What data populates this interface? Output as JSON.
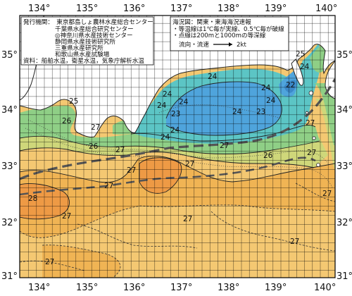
{
  "map": {
    "lon_ticks": [
      "134°",
      "135°",
      "136°",
      "137°",
      "138°",
      "139°",
      "140°"
    ],
    "lat_ticks": [
      "35°",
      "34°",
      "33°",
      "32°",
      "31°"
    ]
  },
  "info_left": {
    "lines": [
      "発行機関：　東京都島しょ農林水産総合センター",
      "千葉県水産総合研究センター",
      "◎神奈川県水産技術センター",
      "静岡県水産技術研究所",
      "三重県水産研究所",
      "和歌山県水産試験場",
      "資料：船舶水温，衛星水温，気象庁解析水温"
    ]
  },
  "info_right": {
    "lines": [
      "海況図：関東・東海海況速報",
      "・等温線は1℃毎が実線、0.5℃毎が破線",
      "・点線は200mと1000mの等深線"
    ],
    "legend_label": "流向・流速",
    "legend_speed": "2kt"
  },
  "isotherm_labels": {
    "l1": "24",
    "l2": "25",
    "l3": "24",
    "l4": "24",
    "l5": "24",
    "l6": "24",
    "l7": "23",
    "l8": "24",
    "l9": "24",
    "l10": "24",
    "l11": "24",
    "l12": "23",
    "l13": "22",
    "l14": "24",
    "l15": "25",
    "l16": "26",
    "l17": "27",
    "l18": "26",
    "l19": "27",
    "l20": "27",
    "l21": "27",
    "l22": "26",
    "l23": "27",
    "l24": "27",
    "l25": "28",
    "l26": "27",
    "l27": "27",
    "l28": "27",
    "l29": "27",
    "l30": "27",
    "l31": "27",
    "l32": "27"
  },
  "colors": {
    "sea_27": "#f4c872",
    "sea_27_5": "#f0b454",
    "sea_28": "#ee9a45",
    "sea_26": "#cfd77a",
    "sea_25": "#8fcf86",
    "sea_24": "#5cc5c5",
    "sea_23": "#4fa4dc",
    "land": "#ffffff",
    "kuroshio_axis": "#555555"
  }
}
